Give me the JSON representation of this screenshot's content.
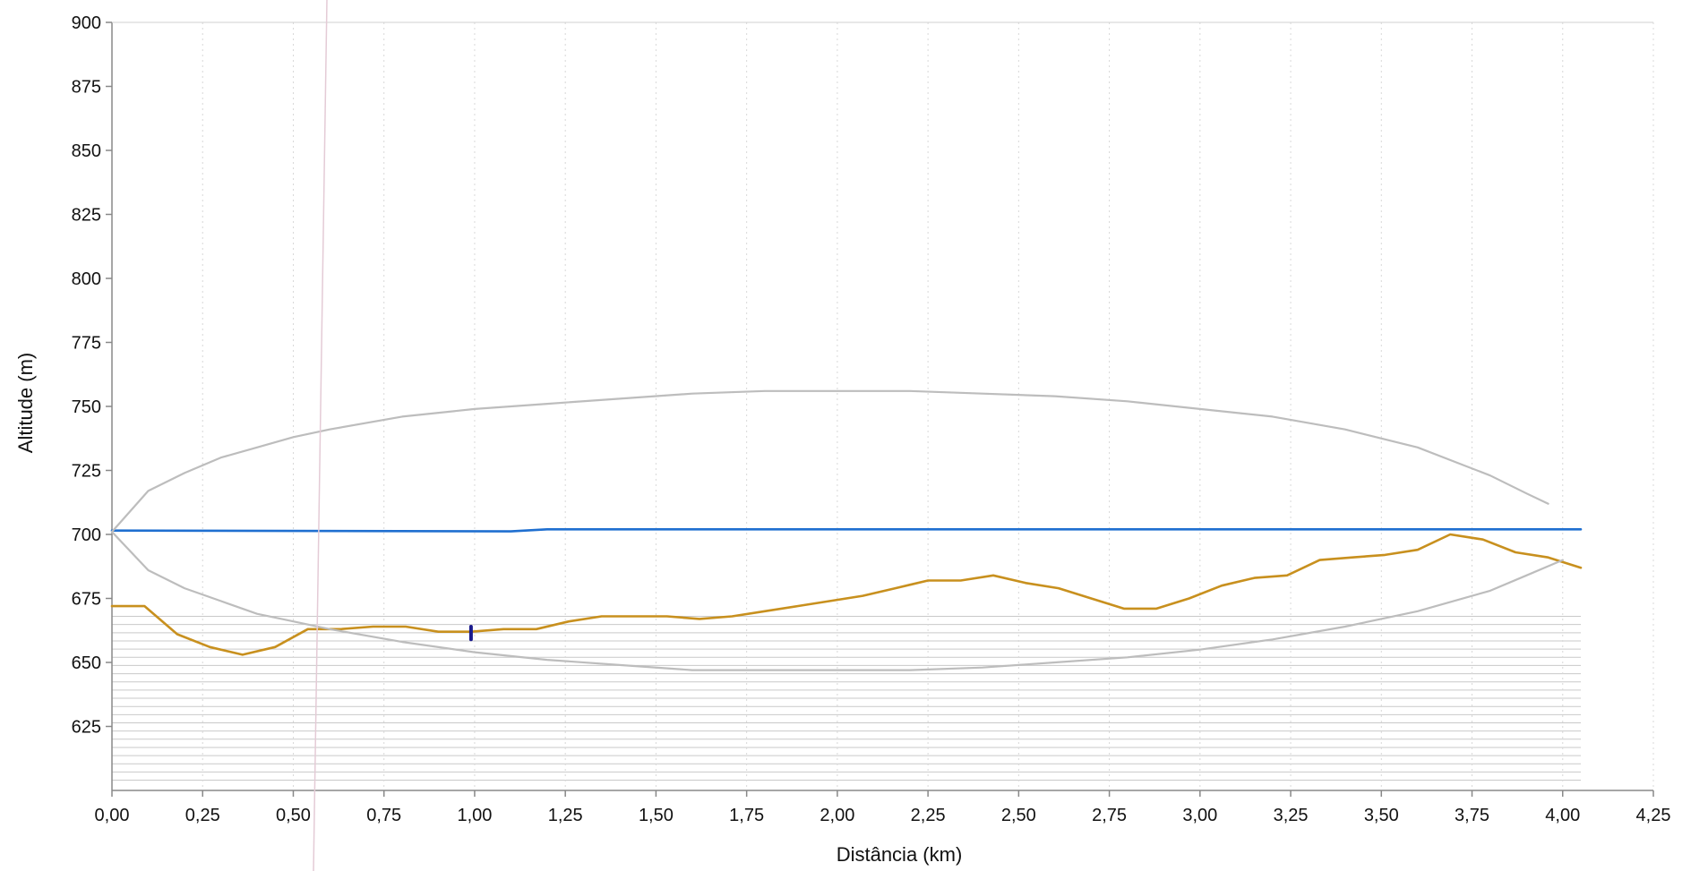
{
  "chart_data": {
    "type": "line",
    "title": "",
    "xlabel": "Distância (km)",
    "ylabel": "Altitude (m)",
    "xlim": [
      0,
      4.25
    ],
    "ylim": [
      600,
      900
    ],
    "x_ticks": [
      "0,00",
      "0,25",
      "0,50",
      "0,75",
      "1,00",
      "1,25",
      "1,50",
      "1,75",
      "2,00",
      "2,25",
      "2,50",
      "2,75",
      "3,00",
      "3,25",
      "3,50",
      "3,75",
      "4,00",
      "4,25"
    ],
    "y_ticks": [
      "900",
      "875",
      "850",
      "825",
      "800",
      "775",
      "750",
      "725",
      "700",
      "675",
      "650",
      "625"
    ],
    "grid": "vertical-dotted",
    "series": [
      {
        "role": "terrain-profile",
        "color": "#c8901e",
        "x": [
          0,
          0.09,
          0.18,
          0.27,
          0.36,
          0.45,
          0.54,
          0.63,
          0.72,
          0.81,
          0.9,
          0.99,
          1.08,
          1.17,
          1.26,
          1.35,
          1.44,
          1.53,
          1.62,
          1.71,
          1.8,
          1.89,
          1.98,
          2.07,
          2.16,
          2.25,
          2.34,
          2.43,
          2.52,
          2.61,
          2.7,
          2.79,
          2.88,
          2.97,
          3.06,
          3.15,
          3.24,
          3.33,
          3.42,
          3.51,
          3.6,
          3.69,
          3.78,
          3.87,
          3.96,
          4.05
        ],
        "y": [
          672,
          672,
          661,
          656,
          653,
          656,
          663,
          663,
          664,
          664,
          662,
          662,
          663,
          663,
          666,
          668,
          668,
          668,
          667,
          668,
          670,
          672,
          674,
          676,
          679,
          682,
          682,
          684,
          681,
          679,
          675,
          671,
          671,
          675,
          680,
          683,
          684,
          690,
          691,
          692,
          694,
          700,
          698,
          693,
          691,
          687
        ]
      },
      {
        "role": "line-of-sight",
        "color": "#1f6fd0",
        "x": [
          0,
          1.1,
          1.2,
          4.05
        ],
        "y": [
          701.5,
          701.2,
          702.0,
          702.0
        ]
      },
      {
        "role": "fresnel-zone-upper",
        "color": "#bdbdbd",
        "x": [
          0,
          0.1,
          0.2,
          0.3,
          0.4,
          0.5,
          0.6,
          0.8,
          1.0,
          1.2,
          1.4,
          1.6,
          1.8,
          2.0,
          2.2,
          2.4,
          2.6,
          2.8,
          3.0,
          3.2,
          3.4,
          3.6,
          3.8,
          3.9,
          3.96
        ],
        "y": [
          701,
          717,
          724,
          730,
          734,
          738,
          741,
          746,
          749,
          751,
          753,
          755,
          756,
          756,
          756,
          755,
          754,
          752,
          749,
          746,
          741,
          734,
          723,
          716,
          712
        ]
      },
      {
        "role": "fresnel-zone-lower",
        "color": "#bdbdbd",
        "x": [
          0,
          0.1,
          0.2,
          0.3,
          0.4,
          0.5,
          0.6,
          0.8,
          1.0,
          1.2,
          1.4,
          1.6,
          1.8,
          2.0,
          2.2,
          2.4,
          2.6,
          2.8,
          3.0,
          3.2,
          3.4,
          3.6,
          3.8,
          3.9,
          4.0
        ],
        "y": [
          701,
          686,
          679,
          674,
          669,
          666,
          663,
          658,
          654,
          651,
          649,
          647,
          647,
          647,
          647,
          648,
          650,
          652,
          655,
          659,
          664,
          670,
          678,
          684,
          690
        ]
      },
      {
        "role": "marker",
        "color": "#1a1a8c",
        "x": [
          0.99,
          0.99
        ],
        "y": [
          659,
          664
        ]
      }
    ]
  }
}
